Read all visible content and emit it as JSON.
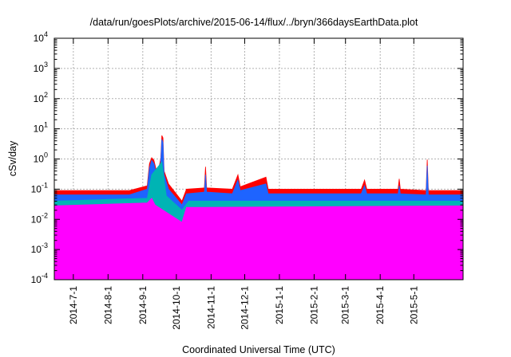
{
  "chart_data": {
    "type": "area",
    "title": "/data/run/goesPlots/archive/2015-06-14/flux/../bryn/366daysEarthData.plot",
    "xlabel": "Coordinated Universal Time (UTC)",
    "ylabel": "cSv/day",
    "yscale": "log",
    "ylim": [
      0.0001,
      10000
    ],
    "xlim": [
      "2014-06-14",
      "2015-06-14"
    ],
    "grid": true,
    "yticks": [
      {
        "value": 0.0001,
        "base": "10",
        "exp": "-4"
      },
      {
        "value": 0.001,
        "base": "10",
        "exp": "-3"
      },
      {
        "value": 0.01,
        "base": "10",
        "exp": "-2"
      },
      {
        "value": 0.1,
        "base": "10",
        "exp": "-1"
      },
      {
        "value": 1,
        "base": "10",
        "exp": "0"
      },
      {
        "value": 10,
        "base": "10",
        "exp": "1"
      },
      {
        "value": 100,
        "base": "10",
        "exp": "2"
      },
      {
        "value": 1000,
        "base": "10",
        "exp": "3"
      },
      {
        "value": 10000,
        "base": "10",
        "exp": "4"
      }
    ],
    "xticks": [
      {
        "date": "2014-07-01",
        "label": "2014-7-1"
      },
      {
        "date": "2014-08-01",
        "label": "2014-8-1"
      },
      {
        "date": "2014-09-01",
        "label": "2014-9-1"
      },
      {
        "date": "2014-10-01",
        "label": "2014-10-1"
      },
      {
        "date": "2014-11-01",
        "label": "2014-11-1"
      },
      {
        "date": "2014-12-01",
        "label": "2014-12-1"
      },
      {
        "date": "2015-01-01",
        "label": "2015-1-1"
      },
      {
        "date": "2015-02-01",
        "label": "2015-2-1"
      },
      {
        "date": "2015-03-01",
        "label": "2015-3-1"
      },
      {
        "date": "2015-04-01",
        "label": "2015-4-1"
      },
      {
        "date": "2015-05-01",
        "label": "2015-5-1"
      }
    ],
    "series": [
      {
        "color": "#ff0000",
        "points": [
          [
            "2014-06-14",
            0.09
          ],
          [
            "2014-08-20",
            0.09
          ],
          [
            "2014-09-05",
            0.13
          ],
          [
            "2014-09-07",
            0.7
          ],
          [
            "2014-09-09",
            1.1
          ],
          [
            "2014-09-11",
            0.9
          ],
          [
            "2014-09-14",
            0.3
          ],
          [
            "2014-09-17",
            1.0
          ],
          [
            "2014-09-18",
            6.0
          ],
          [
            "2014-09-19",
            5.0
          ],
          [
            "2014-09-20",
            0.4
          ],
          [
            "2014-09-24",
            0.15
          ],
          [
            "2014-10-06",
            0.04
          ],
          [
            "2014-10-10",
            0.1
          ],
          [
            "2014-10-26",
            0.11
          ],
          [
            "2014-10-27",
            0.55
          ],
          [
            "2014-10-28",
            0.11
          ],
          [
            "2014-11-20",
            0.1
          ],
          [
            "2014-11-25",
            0.3
          ],
          [
            "2014-11-27",
            0.12
          ],
          [
            "2014-12-20",
            0.25
          ],
          [
            "2014-12-22",
            0.1
          ],
          [
            "2015-03-15",
            0.1
          ],
          [
            "2015-03-18",
            0.2
          ],
          [
            "2015-03-20",
            0.1
          ],
          [
            "2015-04-17",
            0.1
          ],
          [
            "2015-04-18",
            0.22
          ],
          [
            "2015-04-19",
            0.1
          ],
          [
            "2015-05-12",
            0.09
          ],
          [
            "2015-05-13",
            0.95
          ],
          [
            "2015-05-14",
            0.09
          ],
          [
            "2015-06-14",
            0.09
          ]
        ]
      },
      {
        "color": "#1e64ff",
        "points": [
          [
            "2014-06-14",
            0.065
          ],
          [
            "2014-08-20",
            0.065
          ],
          [
            "2014-09-05",
            0.1
          ],
          [
            "2014-09-07",
            0.5
          ],
          [
            "2014-09-09",
            0.9
          ],
          [
            "2014-09-11",
            0.7
          ],
          [
            "2014-09-14",
            0.22
          ],
          [
            "2014-09-17",
            0.8
          ],
          [
            "2014-09-18",
            4.5
          ],
          [
            "2014-09-19",
            3.5
          ],
          [
            "2014-09-20",
            0.3
          ],
          [
            "2014-09-24",
            0.1
          ],
          [
            "2014-10-06",
            0.03
          ],
          [
            "2014-10-10",
            0.07
          ],
          [
            "2014-10-26",
            0.08
          ],
          [
            "2014-10-27",
            0.3
          ],
          [
            "2014-10-28",
            0.08
          ],
          [
            "2014-11-20",
            0.07
          ],
          [
            "2014-11-25",
            0.2
          ],
          [
            "2014-11-27",
            0.09
          ],
          [
            "2014-12-20",
            0.15
          ],
          [
            "2014-12-22",
            0.07
          ],
          [
            "2015-03-15",
            0.07
          ],
          [
            "2015-03-18",
            0.13
          ],
          [
            "2015-03-20",
            0.07
          ],
          [
            "2015-04-17",
            0.07
          ],
          [
            "2015-04-18",
            0.13
          ],
          [
            "2015-04-19",
            0.07
          ],
          [
            "2015-05-12",
            0.065
          ],
          [
            "2015-05-13",
            0.6
          ],
          [
            "2015-05-14",
            0.065
          ],
          [
            "2015-06-14",
            0.065
          ]
        ]
      },
      {
        "color": "#00b4b4",
        "points": [
          [
            "2014-06-14",
            0.04
          ],
          [
            "2014-09-05",
            0.05
          ],
          [
            "2014-09-09",
            0.3
          ],
          [
            "2014-09-18",
            0.8
          ],
          [
            "2014-09-22",
            0.06
          ],
          [
            "2014-10-06",
            0.02
          ],
          [
            "2014-10-12",
            0.04
          ],
          [
            "2015-06-14",
            0.04
          ]
        ]
      },
      {
        "color": "#ff00ff",
        "points": [
          [
            "2014-06-14",
            0.028
          ],
          [
            "2014-09-05",
            0.035
          ],
          [
            "2014-09-09",
            0.05
          ],
          [
            "2014-09-12",
            0.03
          ],
          [
            "2014-10-06",
            0.008
          ],
          [
            "2014-10-10",
            0.025
          ],
          [
            "2015-06-14",
            0.028
          ]
        ]
      }
    ]
  }
}
